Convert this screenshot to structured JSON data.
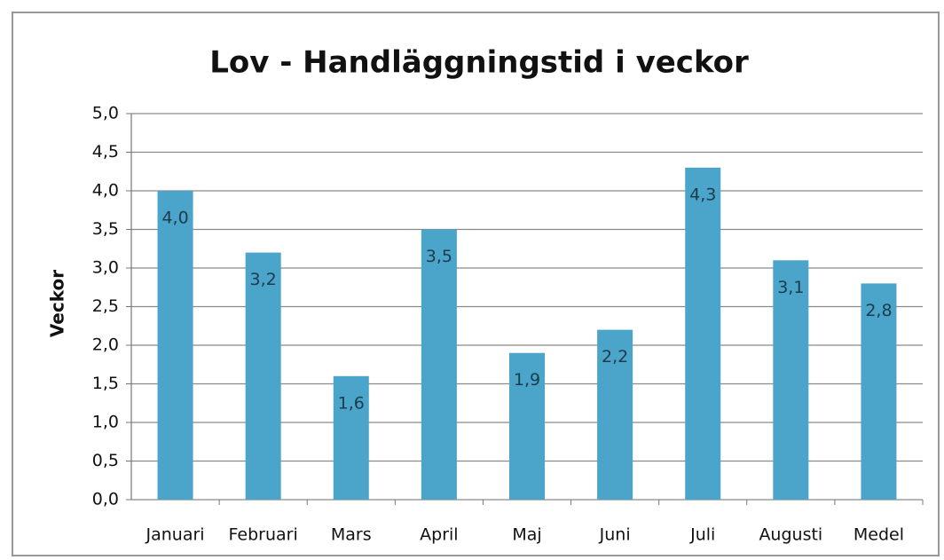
{
  "chart_data": {
    "type": "bar",
    "title": "Lov - Handläggningstid i veckor",
    "y_label": "Veckor",
    "categories": [
      "Januari",
      "Februari",
      "Mars",
      "April",
      "Maj",
      "Juni",
      "Juli",
      "Augusti",
      "Medel"
    ],
    "values": [
      4.0,
      3.2,
      1.6,
      3.5,
      1.9,
      2.2,
      4.3,
      3.1,
      2.8
    ],
    "value_labels": [
      "4,0",
      "3,2",
      "1,6",
      "3,5",
      "1,9",
      "2,2",
      "4,3",
      "3,1",
      "2,8"
    ],
    "color": "#4ba4c9",
    "ylim": [
      0,
      5
    ],
    "yticks": [
      {
        "value": 0,
        "label": "0,0"
      },
      {
        "value": 0.5,
        "label": "0,5"
      },
      {
        "value": 1,
        "label": "1,0"
      },
      {
        "value": 1.5,
        "label": "1,5"
      },
      {
        "value": 2,
        "label": "2,0"
      },
      {
        "value": 2.5,
        "label": "2,5"
      },
      {
        "value": 3,
        "label": "3,0"
      },
      {
        "value": 3.5,
        "label": "3,5"
      },
      {
        "value": 4,
        "label": "4,0"
      },
      {
        "value": 4.5,
        "label": "4,5"
      },
      {
        "value": 5,
        "label": "5,0"
      }
    ],
    "grid": true
  }
}
